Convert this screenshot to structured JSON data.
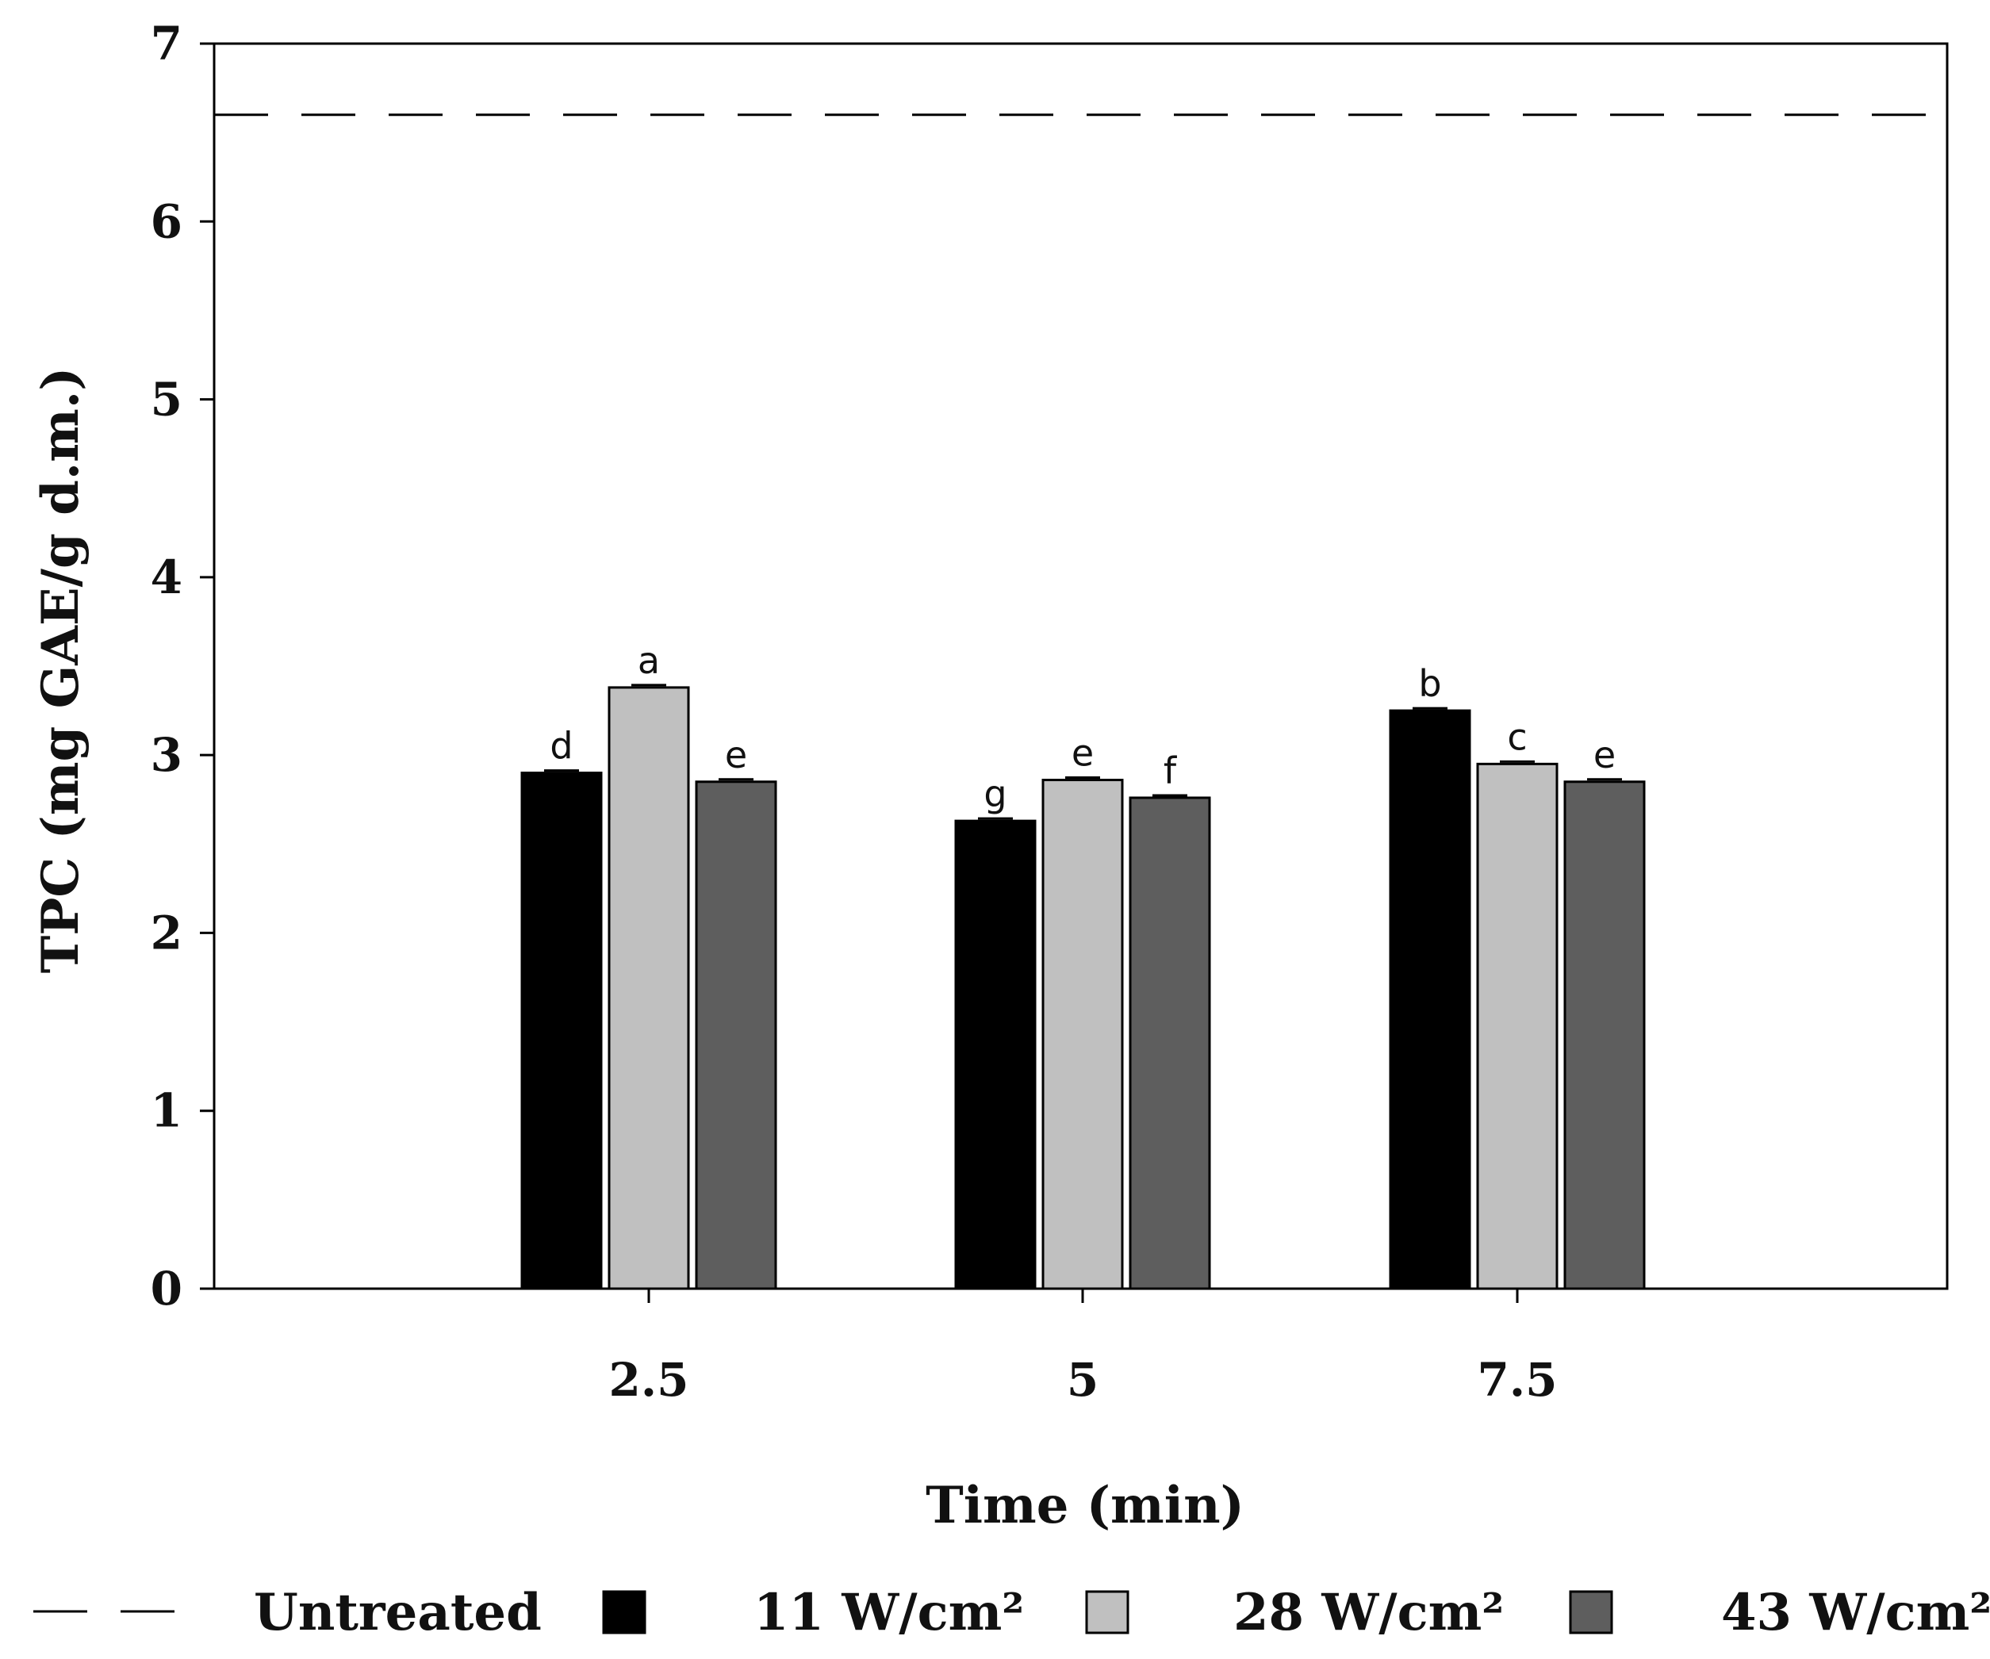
{
  "chart_data": {
    "type": "bar",
    "title": "",
    "xlabel": "Time (min)",
    "ylabel": "TPC (mg GAE/g d.m.)",
    "ylim": [
      0,
      7
    ],
    "yticks": [
      "0",
      "1",
      "2",
      "3",
      "4",
      "5",
      "6",
      "7"
    ],
    "categories": [
      "2.5",
      "5",
      "7.5"
    ],
    "series": [
      {
        "name": "11 W/cm²",
        "color": "#000000",
        "values": [
          2.9,
          2.63,
          3.25
        ],
        "labels": [
          "d",
          "g",
          "b"
        ]
      },
      {
        "name": "28 W/cm²",
        "color": "#c0c0c0",
        "values": [
          3.38,
          2.86,
          2.95
        ],
        "labels": [
          "a",
          "e",
          "c"
        ]
      },
      {
        "name": "43 W/cm²",
        "color": "#5e5e5e",
        "values": [
          2.85,
          2.76,
          2.85
        ],
        "labels": [
          "e",
          "f",
          "e"
        ]
      }
    ],
    "reference_line": {
      "name": "Untreated",
      "value": 6.6,
      "style": "dashed"
    },
    "grid": false,
    "legend_position": "bottom"
  }
}
